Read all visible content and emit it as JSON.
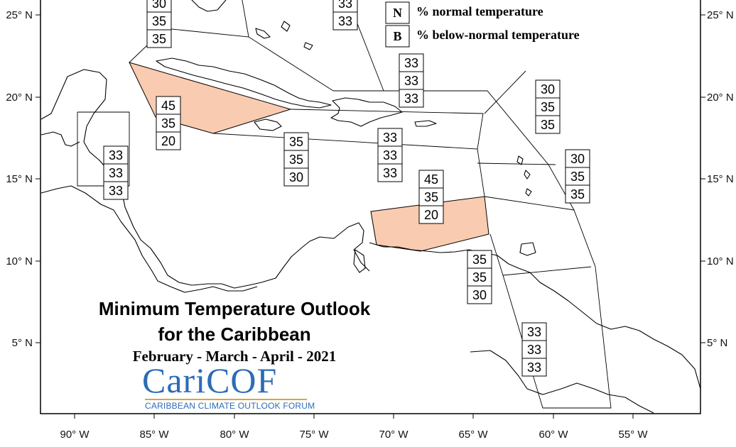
{
  "title": {
    "line1": "Minimum Temperature Outlook",
    "line2": "for the Caribbean",
    "period": "February - March - April - 2021"
  },
  "logo": {
    "wordmark": "CariCOF",
    "tagline": "CARIBBEAN CLIMATE OUTLOOK FORUM"
  },
  "legend": [
    {
      "key": "N",
      "text": "% normal temperature"
    },
    {
      "key": "B",
      "text": "% below-normal temperature"
    }
  ],
  "axes": {
    "longitude_labels": [
      "90° W",
      "85° W",
      "80° W",
      "75° W",
      "70° W",
      "65° W",
      "60° W",
      "55° W"
    ],
    "latitude_labels": [
      "25° N",
      "20° N",
      "15° N",
      "10° N",
      "5° N"
    ]
  },
  "colors": {
    "highlight_fill": "#f9cbb0",
    "logo_blue": "#2c6cb8",
    "logo_gold": "#d8a63a"
  },
  "forecast_boxes": [
    {
      "values": [
        "30",
        "35",
        "35"
      ]
    },
    {
      "values": [
        "33",
        "33"
      ]
    },
    {
      "values": [
        "33",
        "33",
        "33"
      ]
    },
    {
      "values": [
        "45",
        "35",
        "20"
      ]
    },
    {
      "values": [
        "30",
        "35",
        "35"
      ]
    },
    {
      "values": [
        "35",
        "35",
        "30"
      ]
    },
    {
      "values": [
        "33",
        "33",
        "33"
      ]
    },
    {
      "values": [
        "33",
        "33",
        "33"
      ]
    },
    {
      "values": [
        "30",
        "35",
        "35"
      ]
    },
    {
      "values": [
        "45",
        "35",
        "20"
      ]
    },
    {
      "values": [
        "35",
        "35",
        "30"
      ]
    },
    {
      "values": [
        "33",
        "33",
        "33"
      ]
    }
  ]
}
